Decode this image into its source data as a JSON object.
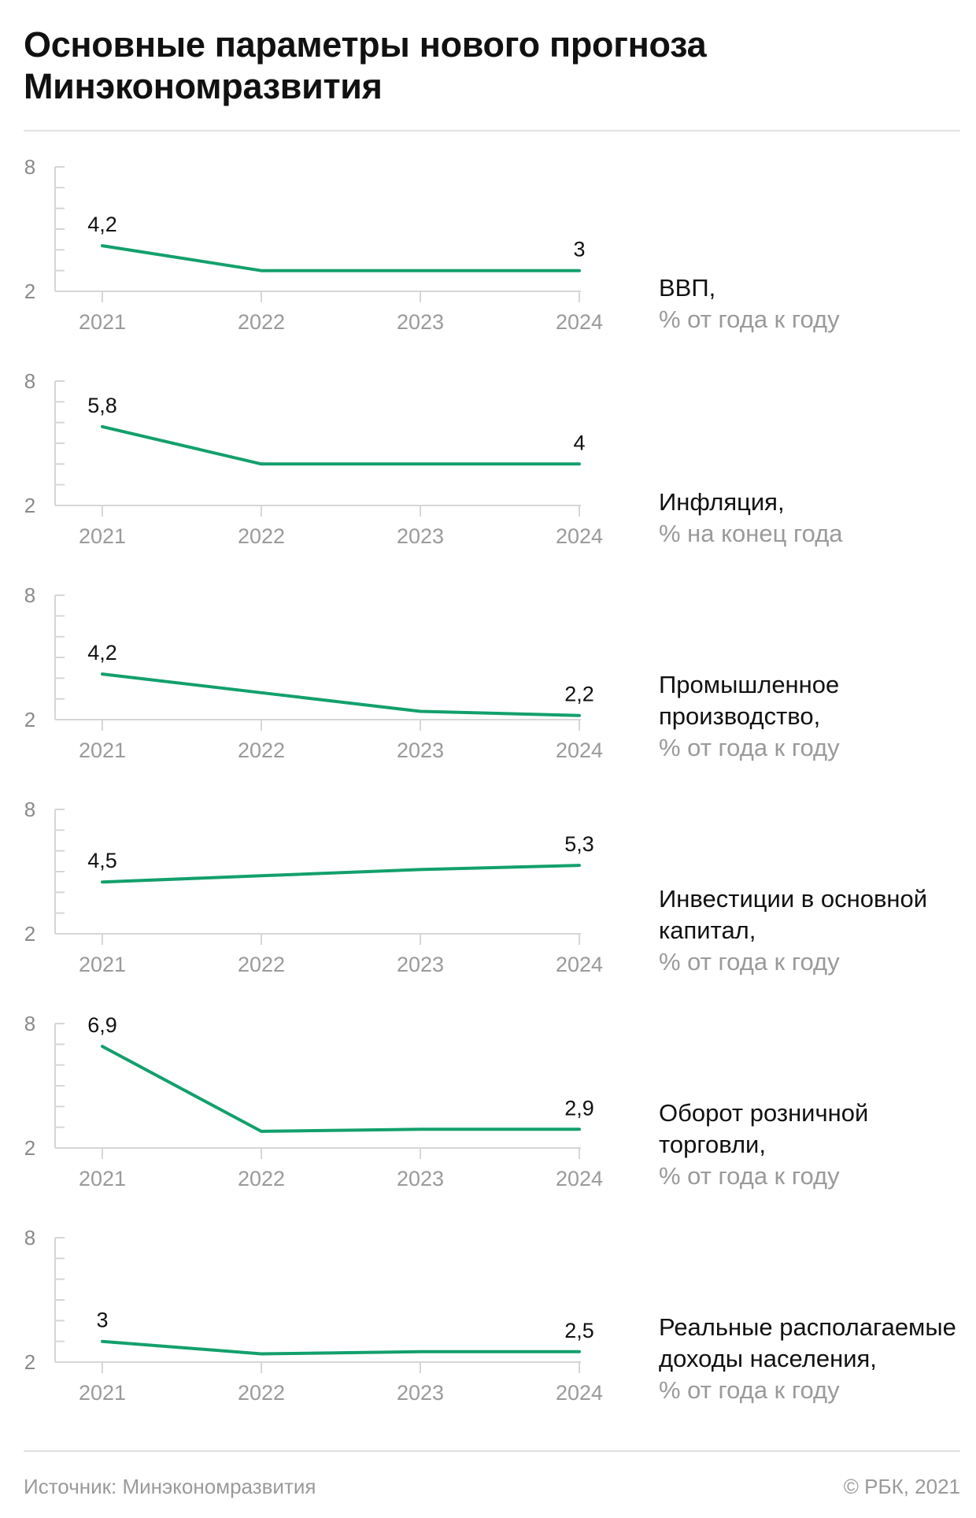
{
  "title": "Основные параметры нового прогноза Минэкономразвития",
  "footer": {
    "source": "Источник: Минэкономразвития",
    "copyright": "© РБК, 2021"
  },
  "colors": {
    "line": "#12a06c",
    "axis": "#d6d6d6",
    "tick_label": "#9a9a9a",
    "text": "#111111"
  },
  "chart_data": [
    {
      "type": "line",
      "label_name": "ВВП,",
      "label_unit": "% от года к году",
      "categories": [
        "2021",
        "2022",
        "2023",
        "2024"
      ],
      "values": [
        4.2,
        3.0,
        3.0,
        3.0
      ],
      "data_labels": [
        "4,2",
        "",
        "",
        "3"
      ],
      "ylim": [
        2,
        8
      ],
      "yticks": [
        "2",
        "8"
      ]
    },
    {
      "type": "line",
      "label_name": "Инфляция,",
      "label_unit": "% на конец года",
      "categories": [
        "2021",
        "2022",
        "2023",
        "2024"
      ],
      "values": [
        5.8,
        4.0,
        4.0,
        4.0
      ],
      "data_labels": [
        "5,8",
        "",
        "",
        "4"
      ],
      "ylim": [
        2,
        8
      ],
      "yticks": [
        "2",
        "8"
      ]
    },
    {
      "type": "line",
      "label_name": "Промышленное производство,",
      "label_unit": "% от года к году",
      "categories": [
        "2021",
        "2022",
        "2023",
        "2024"
      ],
      "values": [
        4.2,
        3.3,
        2.4,
        2.2
      ],
      "data_labels": [
        "4,2",
        "",
        "",
        "2,2"
      ],
      "ylim": [
        2,
        8
      ],
      "yticks": [
        "2",
        "8"
      ]
    },
    {
      "type": "line",
      "label_name": "Инвестиции в основной капитал,",
      "label_unit": "% от года к году",
      "categories": [
        "2021",
        "2022",
        "2023",
        "2024"
      ],
      "values": [
        4.5,
        4.8,
        5.1,
        5.3
      ],
      "data_labels": [
        "4,5",
        "",
        "",
        "5,3"
      ],
      "ylim": [
        2,
        8
      ],
      "yticks": [
        "2",
        "8"
      ]
    },
    {
      "type": "line",
      "label_name": "Оборот розничной торговли,",
      "label_unit": "% от года к году",
      "categories": [
        "2021",
        "2022",
        "2023",
        "2024"
      ],
      "values": [
        6.9,
        2.8,
        2.9,
        2.9
      ],
      "data_labels": [
        "6,9",
        "",
        "",
        "2,9"
      ],
      "ylim": [
        2,
        8
      ],
      "yticks": [
        "2",
        "8"
      ]
    },
    {
      "type": "line",
      "label_name": "Реальные располагаемые доходы населения,",
      "label_unit": "% от года к году",
      "categories": [
        "2021",
        "2022",
        "2023",
        "2024"
      ],
      "values": [
        3.0,
        2.4,
        2.5,
        2.5
      ],
      "data_labels": [
        "3",
        "",
        "",
        "2,5"
      ],
      "ylim": [
        2,
        8
      ],
      "yticks": [
        "2",
        "8"
      ]
    }
  ]
}
